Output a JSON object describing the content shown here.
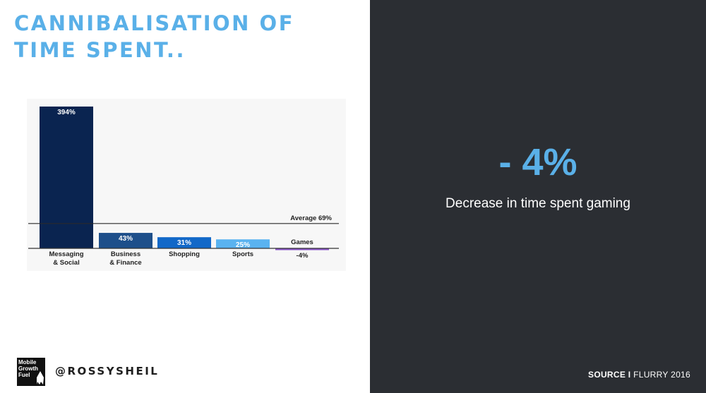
{
  "slide": {
    "title_line1": "CANNIBALISATION OF",
    "title_line2": "TIME SPENT..",
    "big_stat": "- 4%",
    "stat_caption": "Decrease in time spent gaming",
    "handle": "@ROSSYSHEIL",
    "logo_text": "Mobile\nGrowth\nFuel",
    "source_label": "SOURCE I",
    "source_name": "FLURRY 2016"
  },
  "colors": {
    "title": "#5ab0e8",
    "dark_panel": "#2b2e33",
    "accent": "#5ab0e8"
  },
  "chart_data": {
    "type": "bar",
    "categories": [
      [
        "Messaging",
        "& Social"
      ],
      [
        "Business",
        "& Finance"
      ],
      [
        "Shopping"
      ],
      [
        "Sports"
      ],
      [
        "Games"
      ]
    ],
    "values": [
      394,
      43,
      31,
      25,
      -4
    ],
    "value_labels": [
      "394%",
      "43%",
      "31%",
      "25%",
      "-4%"
    ],
    "bar_colors": [
      "#0a2450",
      "#1e4f8a",
      "#1268c8",
      "#5ab3f0",
      "#8a55c8"
    ],
    "reference_line": {
      "value": 69,
      "label": "Average 69%"
    },
    "unit": "%",
    "ylim": [
      -4,
      394
    ],
    "grid": false,
    "legend": "none"
  }
}
